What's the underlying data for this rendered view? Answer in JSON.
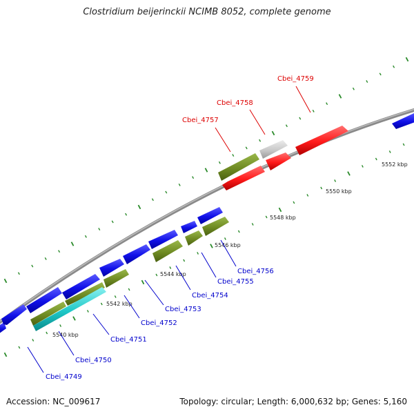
{
  "title": "Clostridium beijerinckii NCIMB 8052, complete genome",
  "footer": {
    "accession": "Accession: NC_009617",
    "stats": "Topology: circular; Length: 6,000,632 bp; Genes: 5,160"
  },
  "colors": {
    "forward_gene": "#1010e8",
    "reverse_gene": "#6f8b23",
    "highlight_gene": "#ff1a1a",
    "neutral_gene": "#c8c8c8",
    "rna_gene": "#1ec8c8",
    "backbone": "#888888",
    "tick": "#2a8a2a",
    "label_blue": "#0000cc",
    "label_red": "#dd0000"
  },
  "scale": [
    {
      "text": "5540 kbp"
    },
    {
      "text": "5542 kbp"
    },
    {
      "text": "5544 kbp"
    },
    {
      "text": "5546 kbp"
    },
    {
      "text": "5548 kbp"
    },
    {
      "text": "5550 kbp"
    },
    {
      "text": "5552 kbp"
    }
  ],
  "genes": [
    {
      "name": "Cbei_4749",
      "color": "label_blue"
    },
    {
      "name": "Cbei_4750",
      "color": "label_blue"
    },
    {
      "name": "Cbei_4751",
      "color": "label_blue"
    },
    {
      "name": "Cbei_4752",
      "color": "label_blue"
    },
    {
      "name": "Cbei_4753",
      "color": "label_blue"
    },
    {
      "name": "Cbei_4754",
      "color": "label_blue"
    },
    {
      "name": "Cbei_4755",
      "color": "label_blue"
    },
    {
      "name": "Cbei_4756",
      "color": "label_blue"
    },
    {
      "name": "Cbei_4757",
      "color": "label_red"
    },
    {
      "name": "Cbei_4758",
      "color": "label_red"
    },
    {
      "name": "Cbei_4759",
      "color": "label_red"
    }
  ]
}
